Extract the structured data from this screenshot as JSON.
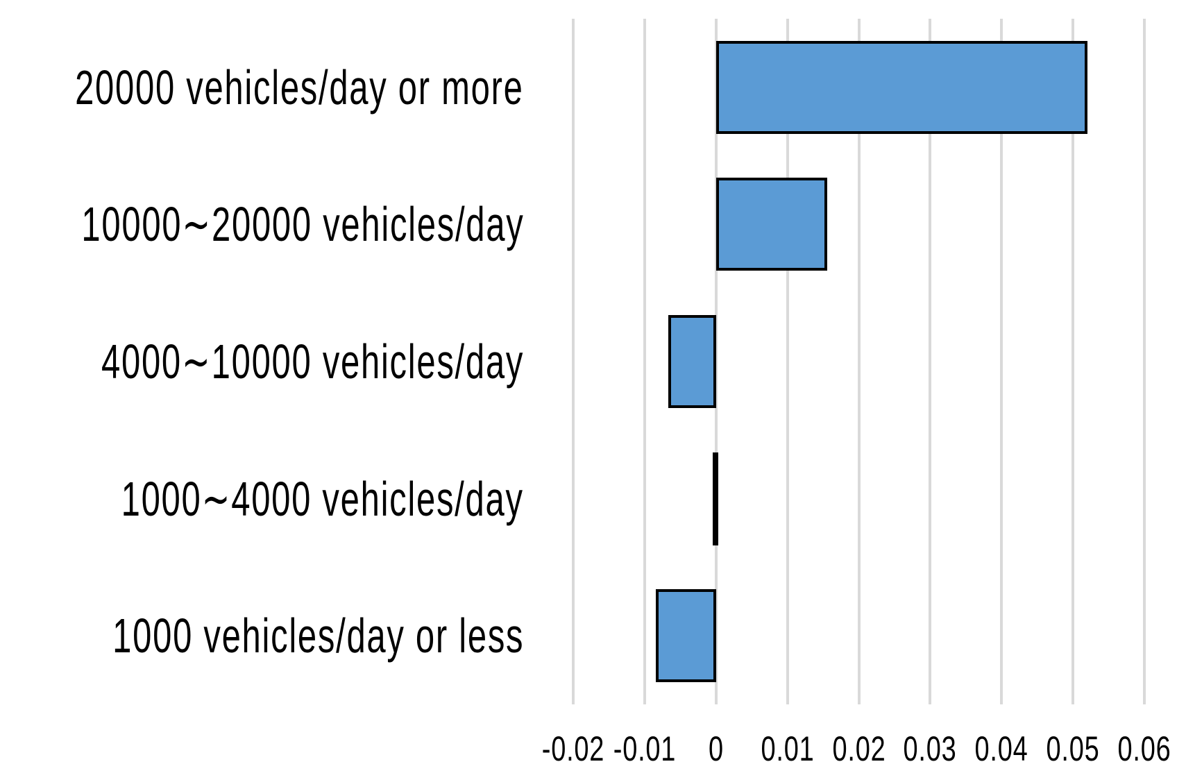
{
  "chart_data": {
    "type": "bar",
    "orientation": "horizontal",
    "title": "",
    "xlabel": "",
    "ylabel": "",
    "categories": [
      "20000 vehicles/day or more",
      "10000～20000 vehicles/day",
      "4000～10000 vehicles/day",
      "1000～4000 vehicles/day",
      "1000 vehicles/day or less"
    ],
    "values": [
      0.052,
      0.0156,
      -0.0067,
      -0.0005,
      -0.0085
    ],
    "xlim": [
      -0.02,
      0.06
    ],
    "xtick_values": [
      -0.02,
      -0.01,
      0,
      0.01,
      0.02,
      0.03,
      0.04,
      0.05,
      0.06
    ],
    "xtick_labels": [
      "-0.02",
      "-0.01",
      "0",
      "0.01",
      "0.02",
      "0.03",
      "0.04",
      "0.05",
      "0.06"
    ],
    "grid": "vertical-only",
    "legend": "none",
    "colors": {
      "bar_fill": "#5B9BD5",
      "bar_border": "#000000",
      "gridline": "#D9D9D9",
      "text": "#000000",
      "background": "#FFFFFF"
    }
  }
}
